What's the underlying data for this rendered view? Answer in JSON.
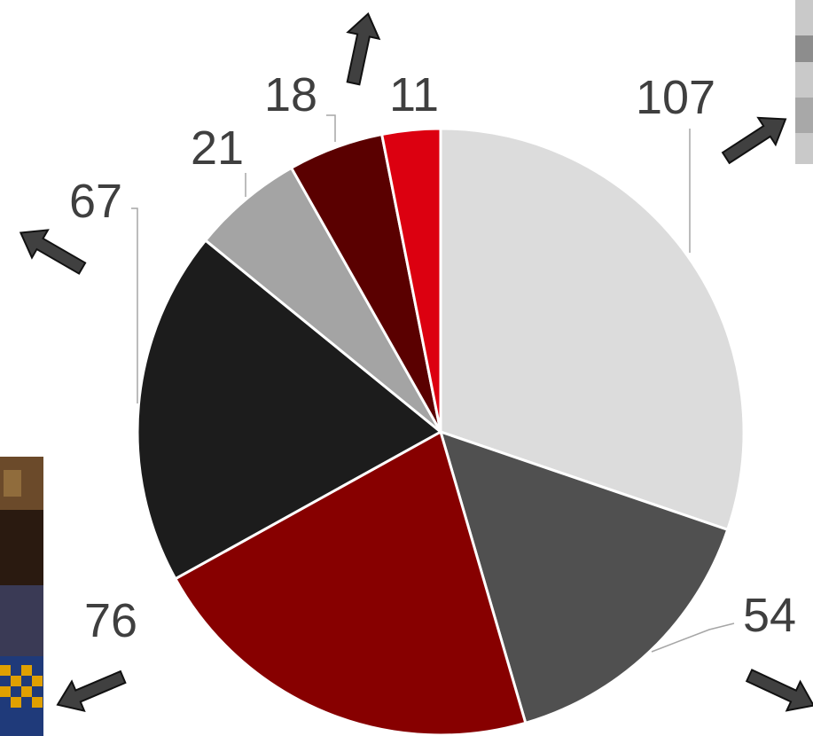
{
  "chart_data": {
    "type": "pie",
    "title": "",
    "start_angle_deg": 0,
    "direction": "clockwise",
    "slices": [
      {
        "value": 107,
        "label": "107",
        "color": "#dcdcdc"
      },
      {
        "value": 54,
        "label": "54",
        "color": "#505050"
      },
      {
        "value": 76,
        "label": "76",
        "color": "#870000"
      },
      {
        "value": 67,
        "label": "67",
        "color": "#1c1c1c"
      },
      {
        "value": 21,
        "label": "21",
        "color": "#a4a4a4"
      },
      {
        "value": 18,
        "label": "18",
        "color": "#5a0000"
      },
      {
        "value": 11,
        "label": "11",
        "color": "#dc0010"
      }
    ],
    "legend": "none"
  },
  "decorations": {
    "arrow_color": "#404040",
    "arrow_icon": "arrow-icon",
    "photo_icon": "photo-thumbnail-icon"
  }
}
